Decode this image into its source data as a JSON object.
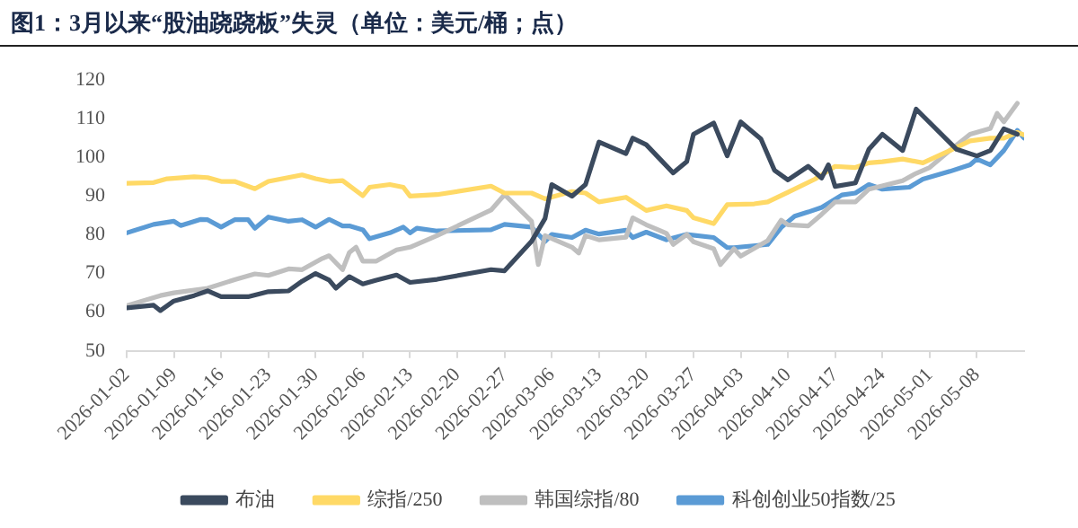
{
  "chart_data": {
    "type": "line",
    "title": "图1：3月以来“股油跷跷板”失灵（单位：美元/桶；点）",
    "xlim": [
      "2026-01-02",
      "2026-05-15"
    ],
    "xticks": [
      "2026-01-02",
      "2026-01-09",
      "2026-01-16",
      "2026-01-23",
      "2026-01-30",
      "2026-02-06",
      "2026-02-13",
      "2026-02-20",
      "2026-02-27",
      "2026-03-06",
      "2026-03-13",
      "2026-03-20",
      "2026-03-27",
      "2026-04-03",
      "2026-04-10",
      "2026-04-17",
      "2026-04-24",
      "2026-05-01",
      "2026-05-08"
    ],
    "ylim": [
      50,
      120
    ],
    "yticks": [
      50,
      60,
      70,
      80,
      90,
      100,
      110,
      120
    ],
    "grid": false,
    "legend": "bottom",
    "marker": "none",
    "line_style": "solid",
    "series": [
      {
        "name": "布油",
        "color": "#3b4a5e",
        "x": [
          "2026-01-02",
          "2026-01-06",
          "2026-01-07",
          "2026-01-09",
          "2026-01-12",
          "2026-01-14",
          "2026-01-16",
          "2026-01-20",
          "2026-01-23",
          "2026-01-26",
          "2026-01-28",
          "2026-01-30",
          "2026-02-01",
          "2026-02-02",
          "2026-02-04",
          "2026-02-06",
          "2026-02-08",
          "2026-02-11",
          "2026-02-13",
          "2026-02-17",
          "2026-02-25",
          "2026-02-27",
          "2026-03-03",
          "2026-03-05",
          "2026-03-06",
          "2026-03-09",
          "2026-03-11",
          "2026-03-13",
          "2026-03-17",
          "2026-03-18",
          "2026-03-20",
          "2026-03-24",
          "2026-03-26",
          "2026-03-27",
          "2026-03-30",
          "2026-04-01",
          "2026-04-03",
          "2026-04-06",
          "2026-04-08",
          "2026-04-10",
          "2026-04-13",
          "2026-04-15",
          "2026-04-16",
          "2026-04-17",
          "2026-04-20",
          "2026-04-22",
          "2026-04-24",
          "2026-04-27",
          "2026-04-29",
          "2026-05-05",
          "2026-05-08",
          "2026-05-10",
          "2026-05-12",
          "2026-05-14"
        ],
        "values": [
          61.1,
          61.8,
          60.4,
          62.9,
          64.3,
          65.5,
          64,
          64,
          65.3,
          65.5,
          68,
          70,
          68.3,
          66.2,
          69.2,
          67.3,
          68.3,
          69.6,
          67.7,
          68.5,
          71,
          70.7,
          78.3,
          84.2,
          93,
          90,
          93,
          104,
          101,
          105,
          103.3,
          96,
          98.9,
          106,
          108.9,
          100.4,
          109.2,
          104.8,
          96.7,
          94.2,
          97.7,
          94.7,
          98.1,
          92.5,
          93.4,
          102.1,
          106,
          101.8,
          112.5,
          102.1,
          100.4,
          101.8,
          107.4,
          106
        ]
      },
      {
        "name": "综指/250",
        "color": "#ffd966",
        "x": [
          "2026-01-02",
          "2026-01-06",
          "2026-01-08",
          "2026-01-12",
          "2026-01-14",
          "2026-01-16",
          "2026-01-18",
          "2026-01-21",
          "2026-01-23",
          "2026-01-28",
          "2026-01-30",
          "2026-02-01",
          "2026-02-03",
          "2026-02-06",
          "2026-02-07",
          "2026-02-10",
          "2026-02-12",
          "2026-02-13",
          "2026-02-17",
          "2026-02-25",
          "2026-02-27",
          "2026-03-03",
          "2026-03-05",
          "2026-03-09",
          "2026-03-11",
          "2026-03-13",
          "2026-03-17",
          "2026-03-20",
          "2026-03-23",
          "2026-03-26",
          "2026-03-27",
          "2026-03-30",
          "2026-04-01",
          "2026-04-05",
          "2026-04-07",
          "2026-04-10",
          "2026-04-14",
          "2026-04-17",
          "2026-04-20",
          "2026-04-22",
          "2026-04-24",
          "2026-04-27",
          "2026-04-30",
          "2026-05-04",
          "2026-05-07",
          "2026-05-10",
          "2026-05-12",
          "2026-05-14",
          "2026-05-15"
        ],
        "values": [
          93.3,
          93.5,
          94.5,
          95,
          94.8,
          93.8,
          93.8,
          91.9,
          93.8,
          95.5,
          94.5,
          93.8,
          94,
          90.1,
          92.3,
          93,
          92.3,
          90,
          90.4,
          92.6,
          90.8,
          90.8,
          89.3,
          91.2,
          90.8,
          88.5,
          89.7,
          86.3,
          87.5,
          86.3,
          84.4,
          82.9,
          87.8,
          88,
          88.5,
          91,
          94.4,
          97.7,
          97.4,
          98.6,
          98.9,
          99.6,
          98.6,
          101.8,
          104.3,
          105,
          105,
          106.5,
          105.8
        ]
      },
      {
        "name": "韩国综指/80",
        "color": "#bfbfbf",
        "x": [
          "2026-01-02",
          "2026-01-07",
          "2026-01-09",
          "2026-01-14",
          "2026-01-18",
          "2026-01-21",
          "2026-01-23",
          "2026-01-26",
          "2026-01-28",
          "2026-01-31",
          "2026-02-01",
          "2026-02-03",
          "2026-02-04",
          "2026-02-05",
          "2026-02-06",
          "2026-02-08",
          "2026-02-11",
          "2026-02-13",
          "2026-02-17",
          "2026-02-25",
          "2026-02-27",
          "2026-03-03",
          "2026-03-04",
          "2026-03-05",
          "2026-03-09",
          "2026-03-10",
          "2026-03-11",
          "2026-03-13",
          "2026-03-17",
          "2026-03-18",
          "2026-03-20",
          "2026-03-23",
          "2026-03-24",
          "2026-03-26",
          "2026-03-27",
          "2026-03-30",
          "2026-03-31",
          "2026-04-02",
          "2026-04-03",
          "2026-04-07",
          "2026-04-09",
          "2026-04-10",
          "2026-04-13",
          "2026-04-15",
          "2026-04-17",
          "2026-04-20",
          "2026-04-22",
          "2026-04-27",
          "2026-04-29",
          "2026-05-01",
          "2026-05-04",
          "2026-05-07",
          "2026-05-10",
          "2026-05-11",
          "2026-05-12",
          "2026-05-14"
        ],
        "values": [
          61.7,
          64.3,
          65,
          66.2,
          68.4,
          69.9,
          69.5,
          71.2,
          71,
          73.9,
          74.6,
          71,
          75.4,
          76.8,
          73.2,
          73.2,
          76.1,
          76.8,
          79.8,
          86.4,
          90.4,
          83.5,
          72.3,
          79.8,
          76.8,
          75.3,
          79.8,
          78.7,
          79.4,
          84.4,
          82.6,
          80.4,
          77.5,
          80.1,
          78.2,
          76.4,
          72.3,
          76.4,
          74.5,
          78.5,
          83.8,
          82.6,
          82.3,
          85.3,
          88.5,
          88.5,
          91.8,
          94,
          95.9,
          97.4,
          101.8,
          106,
          107.5,
          111.4,
          109.2,
          114
        ]
      },
      {
        "name": "科创创业50指数/25",
        "color": "#5b9bd5",
        "x": [
          "2026-01-02",
          "2026-01-06",
          "2026-01-09",
          "2026-01-10",
          "2026-01-13",
          "2026-01-14",
          "2026-01-16",
          "2026-01-18",
          "2026-01-20",
          "2026-01-21",
          "2026-01-23",
          "2026-01-26",
          "2026-01-28",
          "2026-01-30",
          "2026-02-01",
          "2026-02-03",
          "2026-02-04",
          "2026-02-06",
          "2026-02-07",
          "2026-02-10",
          "2026-02-12",
          "2026-02-13",
          "2026-02-14",
          "2026-02-17",
          "2026-02-25",
          "2026-02-27",
          "2026-03-03",
          "2026-03-05",
          "2026-03-06",
          "2026-03-09",
          "2026-03-11",
          "2026-03-13",
          "2026-03-17",
          "2026-03-18",
          "2026-03-20",
          "2026-03-23",
          "2026-03-26",
          "2026-03-30",
          "2026-04-01",
          "2026-04-02",
          "2026-04-07",
          "2026-04-09",
          "2026-04-11",
          "2026-04-13",
          "2026-04-15",
          "2026-04-18",
          "2026-04-20",
          "2026-04-22",
          "2026-04-24",
          "2026-04-28",
          "2026-04-30",
          "2026-05-04",
          "2026-05-07",
          "2026-05-08",
          "2026-05-10",
          "2026-05-12",
          "2026-05-14",
          "2026-05-15"
        ],
        "values": [
          80.5,
          82.7,
          83.5,
          82.4,
          84,
          83.9,
          82,
          83.9,
          83.9,
          81.7,
          84.6,
          83.5,
          83.9,
          82,
          84,
          82.3,
          82.3,
          81.3,
          79,
          80.5,
          82,
          80.5,
          81.7,
          81,
          81.3,
          82.7,
          82,
          78.3,
          80.1,
          79.3,
          81.2,
          80.2,
          81.2,
          79.3,
          80.7,
          78.7,
          80.1,
          79.3,
          76.7,
          76.7,
          77.5,
          81.9,
          84.8,
          85.9,
          87.1,
          90.3,
          90.8,
          93,
          91.8,
          92.3,
          94.4,
          96.4,
          98.1,
          99.6,
          98.1,
          101.8,
          107,
          105
        ]
      }
    ]
  }
}
